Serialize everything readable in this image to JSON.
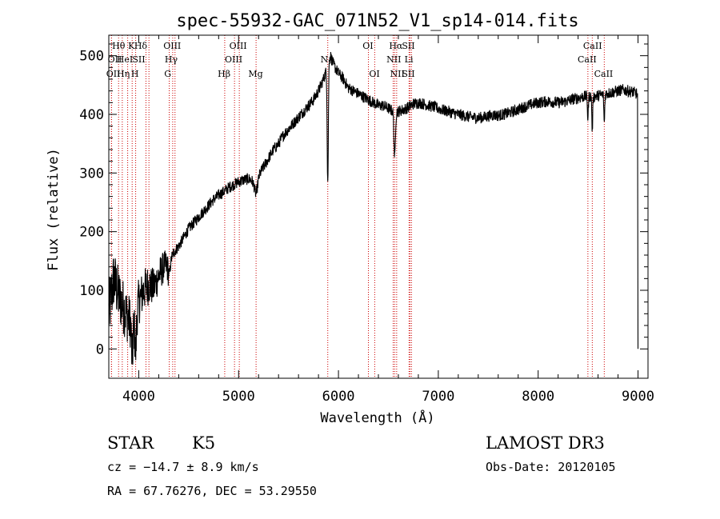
{
  "chart_data": {
    "type": "line",
    "title": "spec-55932-GAC_071N52_V1_sp14-014.fits",
    "xlabel": "Wavelength (Å)",
    "ylabel": "Flux (relative)",
    "xlim": [
      3700,
      9100
    ],
    "ylim": [
      -50,
      535
    ],
    "xticks": [
      4000,
      5000,
      6000,
      7000,
      8000,
      9000
    ],
    "yticks": [
      0,
      100,
      200,
      300,
      400,
      500
    ],
    "anchors": [
      [
        3700,
        60
      ],
      [
        3750,
        120
      ],
      [
        3800,
        90
      ],
      [
        3850,
        70
      ],
      [
        3900,
        50
      ],
      [
        3950,
        40
      ],
      [
        4000,
        80
      ],
      [
        4050,
        100
      ],
      [
        4100,
        110
      ],
      [
        4150,
        105
      ],
      [
        4200,
        125
      ],
      [
        4250,
        140
      ],
      [
        4300,
        145
      ],
      [
        4350,
        165
      ],
      [
        4400,
        175
      ],
      [
        4450,
        190
      ],
      [
        4500,
        205
      ],
      [
        4550,
        215
      ],
      [
        4600,
        225
      ],
      [
        4650,
        235
      ],
      [
        4700,
        245
      ],
      [
        4750,
        255
      ],
      [
        4800,
        262
      ],
      [
        4850,
        268
      ],
      [
        4900,
        275
      ],
      [
        4950,
        280
      ],
      [
        5000,
        285
      ],
      [
        5050,
        288
      ],
      [
        5100,
        290
      ],
      [
        5150,
        285
      ],
      [
        5200,
        295
      ],
      [
        5250,
        310
      ],
      [
        5300,
        325
      ],
      [
        5350,
        340
      ],
      [
        5400,
        350
      ],
      [
        5450,
        365
      ],
      [
        5500,
        375
      ],
      [
        5550,
        385
      ],
      [
        5600,
        395
      ],
      [
        5650,
        405
      ],
      [
        5700,
        415
      ],
      [
        5750,
        425
      ],
      [
        5800,
        440
      ],
      [
        5850,
        460
      ],
      [
        5880,
        475
      ],
      [
        5900,
        490
      ],
      [
        5920,
        500
      ],
      [
        5950,
        485
      ],
      [
        6000,
        470
      ],
      [
        6050,
        460
      ],
      [
        6100,
        445
      ],
      [
        6150,
        440
      ],
      [
        6200,
        435
      ],
      [
        6250,
        430
      ],
      [
        6300,
        425
      ],
      [
        6350,
        420
      ],
      [
        6400,
        415
      ],
      [
        6450,
        415
      ],
      [
        6500,
        410
      ],
      [
        6550,
        405
      ],
      [
        6600,
        405
      ],
      [
        6650,
        408
      ],
      [
        6700,
        412
      ],
      [
        6750,
        418
      ],
      [
        6800,
        420
      ],
      [
        6850,
        418
      ],
      [
        6900,
        415
      ],
      [
        6950,
        413
      ],
      [
        7000,
        410
      ],
      [
        7050,
        407
      ],
      [
        7100,
        405
      ],
      [
        7150,
        402
      ],
      [
        7200,
        400
      ],
      [
        7250,
        398
      ],
      [
        7300,
        396
      ],
      [
        7350,
        395
      ],
      [
        7400,
        394
      ],
      [
        7450,
        395
      ],
      [
        7500,
        397
      ],
      [
        7550,
        399
      ],
      [
        7600,
        398
      ],
      [
        7650,
        400
      ],
      [
        7700,
        402
      ],
      [
        7750,
        405
      ],
      [
        7800,
        408
      ],
      [
        7850,
        412
      ],
      [
        7900,
        415
      ],
      [
        7950,
        418
      ],
      [
        8000,
        420
      ],
      [
        8050,
        421
      ],
      [
        8100,
        422
      ],
      [
        8150,
        421
      ],
      [
        8200,
        420
      ],
      [
        8250,
        421
      ],
      [
        8300,
        423
      ],
      [
        8350,
        426
      ],
      [
        8400,
        428
      ],
      [
        8450,
        430
      ],
      [
        8500,
        431
      ],
      [
        8550,
        430
      ],
      [
        8600,
        432
      ],
      [
        8650,
        434
      ],
      [
        8700,
        436
      ],
      [
        8750,
        438
      ],
      [
        8800,
        440
      ],
      [
        8850,
        442
      ],
      [
        8900,
        440
      ],
      [
        8950,
        438
      ],
      [
        8990,
        435
      ]
    ],
    "absorptions": [
      {
        "x": 3934,
        "depth": 60,
        "width": 10
      },
      {
        "x": 3969,
        "depth": 60,
        "width": 10
      },
      {
        "x": 4305,
        "depth": 20,
        "width": 15
      },
      {
        "x": 5175,
        "depth": 25,
        "width": 20
      },
      {
        "x": 5893,
        "depth": 200,
        "width": 8
      },
      {
        "x": 6563,
        "depth": 80,
        "width": 10
      },
      {
        "x": 8498,
        "depth": 40,
        "width": 6
      },
      {
        "x": 8542,
        "depth": 60,
        "width": 6
      },
      {
        "x": 8662,
        "depth": 50,
        "width": 6
      }
    ],
    "end_drop": {
      "x_from": 8995,
      "x_to": 9000,
      "to": 0
    },
    "noise_blue": 45,
    "noise_red": 10,
    "spectral_lines": [
      {
        "x": 3798,
        "label": "Hθ",
        "row": 1,
        "label_x": 3798
      },
      {
        "x": 3727,
        "label": "OII",
        "row": 2,
        "label_x": 3760
      },
      {
        "x": 3727,
        "label": "OII",
        "row": 3,
        "label_x": 3745
      },
      {
        "x": 3835,
        "label": "Hη",
        "row": 3,
        "label_x": 3845
      },
      {
        "x": 3889,
        "label": "HeI",
        "row": 2,
        "label_x": 3860
      },
      {
        "x": 3934,
        "label": "K",
        "row": 1,
        "label_x": 3926
      },
      {
        "x": 3969,
        "label": "H",
        "row": 3,
        "label_x": 3962
      },
      {
        "x": 4072,
        "label": "SII",
        "row": 2,
        "label_x": 4000
      },
      {
        "x": 4102,
        "label": "Hδ",
        "row": 1,
        "label_x": 4020
      },
      {
        "x": 4305,
        "label": "G",
        "row": 3,
        "label_x": 4290
      },
      {
        "x": 4340,
        "label": "Hγ",
        "row": 2,
        "label_x": 4325
      },
      {
        "x": 4363,
        "label": "OIII",
        "row": 1,
        "label_x": 4335
      },
      {
        "x": 4861,
        "label": "Hβ",
        "row": 3,
        "label_x": 4855
      },
      {
        "x": 4959,
        "label": "OIII",
        "row": 2,
        "label_x": 4950
      },
      {
        "x": 5007,
        "label": "OIII",
        "row": 1,
        "label_x": 4995
      },
      {
        "x": 5175,
        "label": "Mg",
        "row": 3,
        "label_x": 5170
      },
      {
        "x": 5893,
        "label": "Na",
        "row": 2,
        "label_x": 5885
      },
      {
        "x": 6300,
        "label": "OI",
        "row": 1,
        "label_x": 6295
      },
      {
        "x": 6363,
        "label": "OI",
        "row": 3,
        "label_x": 6360
      },
      {
        "x": 6548,
        "label": "NII",
        "row": 2,
        "label_x": 6555
      },
      {
        "x": 6563,
        "label": "Hα",
        "row": 1,
        "label_x": 6575
      },
      {
        "x": 6583,
        "label": "NII",
        "row": 3,
        "label_x": 6590
      },
      {
        "x": 6707,
        "label": "Li",
        "row": 2,
        "label_x": 6705
      },
      {
        "x": 6716,
        "label": "SII",
        "row": 1,
        "label_x": 6700
      },
      {
        "x": 6731,
        "label": "SII",
        "row": 3,
        "label_x": 6700
      },
      {
        "x": 8498,
        "label": "CaII",
        "row": 2,
        "label_x": 8490
      },
      {
        "x": 8542,
        "label": "CaII",
        "row": 1,
        "label_x": 8545
      },
      {
        "x": 8662,
        "label": "CaII",
        "row": 3,
        "label_x": 8655
      }
    ]
  },
  "info": {
    "class": "STAR",
    "subclass": "K5",
    "survey": "LAMOST DR3",
    "cz": "cz = −14.7 ± 8.9 km/s",
    "obs_date": "Obs-Date: 20120105",
    "coords": "RA =  67.76276, DEC =  53.29550"
  },
  "colors": {
    "line": "#000000",
    "marker": "#cc0000"
  }
}
